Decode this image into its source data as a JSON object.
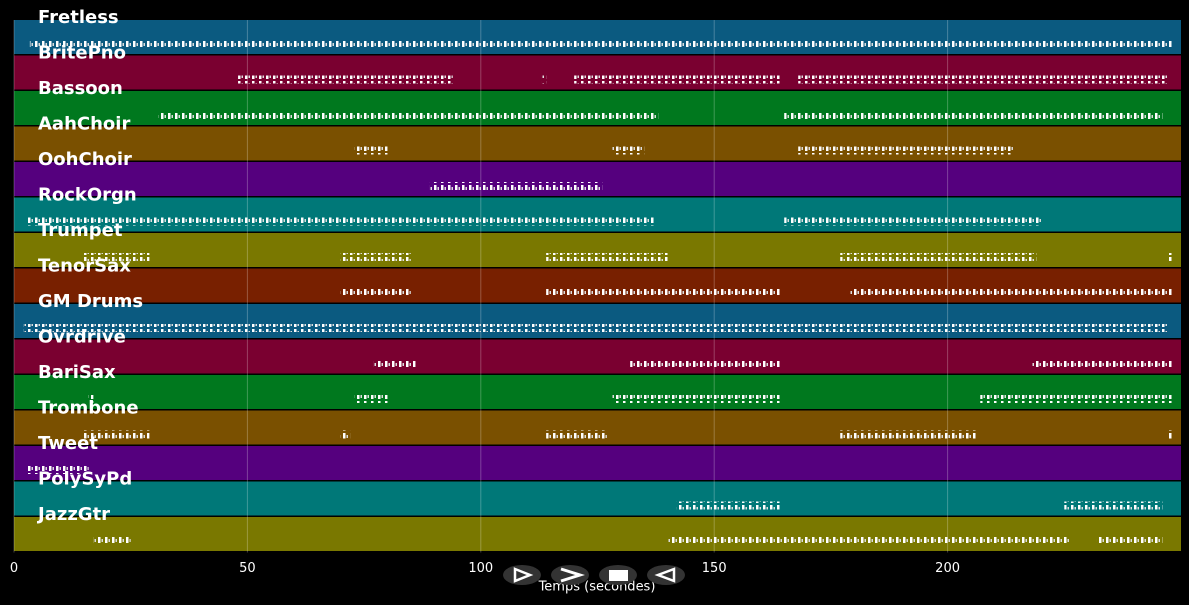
{
  "chart_data": {
    "type": "pianoroll",
    "xlabel": "Temps (secondes)",
    "xlim": [
      0,
      250
    ],
    "xticks": [
      0,
      50,
      100,
      150,
      200
    ],
    "grid": true,
    "tracks": [
      {
        "name": "Fretless",
        "color": "#0b5a80",
        "segments": [
          [
            3.4,
            248
          ]
        ]
      },
      {
        "name": "BritePno",
        "color": "#7a0030",
        "segments": [
          [
            48,
            94
          ],
          [
            113,
            114
          ],
          [
            120,
            164
          ],
          [
            168,
            247
          ]
        ]
      },
      {
        "name": "Bassoon",
        "color": "#00781e",
        "segments": [
          [
            31,
            138
          ],
          [
            165,
            246
          ]
        ]
      },
      {
        "name": "AahChoir",
        "color": "#7a5000",
        "segments": [
          [
            73,
            80
          ],
          [
            128,
            135
          ],
          [
            168,
            214
          ]
        ]
      },
      {
        "name": "OohChoir",
        "color": "#55007e",
        "segments": [
          [
            89,
            126
          ]
        ]
      },
      {
        "name": "RockOrgn",
        "color": "#007878",
        "segments": [
          [
            3,
            137
          ],
          [
            165,
            220
          ]
        ]
      },
      {
        "name": "Trumpet",
        "color": "#7a7800",
        "segments": [
          [
            15,
            29
          ],
          [
            70,
            85
          ],
          [
            114,
            140
          ],
          [
            177,
            219
          ],
          [
            247,
            248
          ]
        ]
      },
      {
        "name": "TenorSax",
        "color": "#782000",
        "segments": [
          [
            70,
            85
          ],
          [
            114,
            164
          ],
          [
            179,
            248
          ]
        ]
      },
      {
        "name": "GM Drums",
        "color": "#0b5a80",
        "segments": [
          [
            2,
            247
          ]
        ]
      },
      {
        "name": "Ovrdrive",
        "color": "#7a0030",
        "segments": [
          [
            77,
            86
          ],
          [
            132,
            164
          ],
          [
            218,
            248
          ]
        ]
      },
      {
        "name": "BariSax",
        "color": "#00781e",
        "segments": [
          [
            16,
            17
          ],
          [
            73,
            80
          ],
          [
            128,
            164
          ],
          [
            207,
            248
          ]
        ]
      },
      {
        "name": "Trombone",
        "color": "#7a5000",
        "segments": [
          [
            15,
            29
          ],
          [
            70,
            72
          ],
          [
            114,
            127
          ],
          [
            177,
            206
          ],
          [
            247,
            248
          ]
        ]
      },
      {
        "name": "Tweet",
        "color": "#55007e",
        "segments": [
          [
            3,
            16
          ]
        ]
      },
      {
        "name": "PolySyPd",
        "color": "#007878",
        "segments": [
          [
            142,
            164
          ],
          [
            225,
            246
          ]
        ]
      },
      {
        "name": "JazzGtr",
        "color": "#7a7800",
        "segments": [
          [
            17,
            25
          ],
          [
            140,
            226
          ],
          [
            232,
            246
          ]
        ]
      }
    ]
  }
}
